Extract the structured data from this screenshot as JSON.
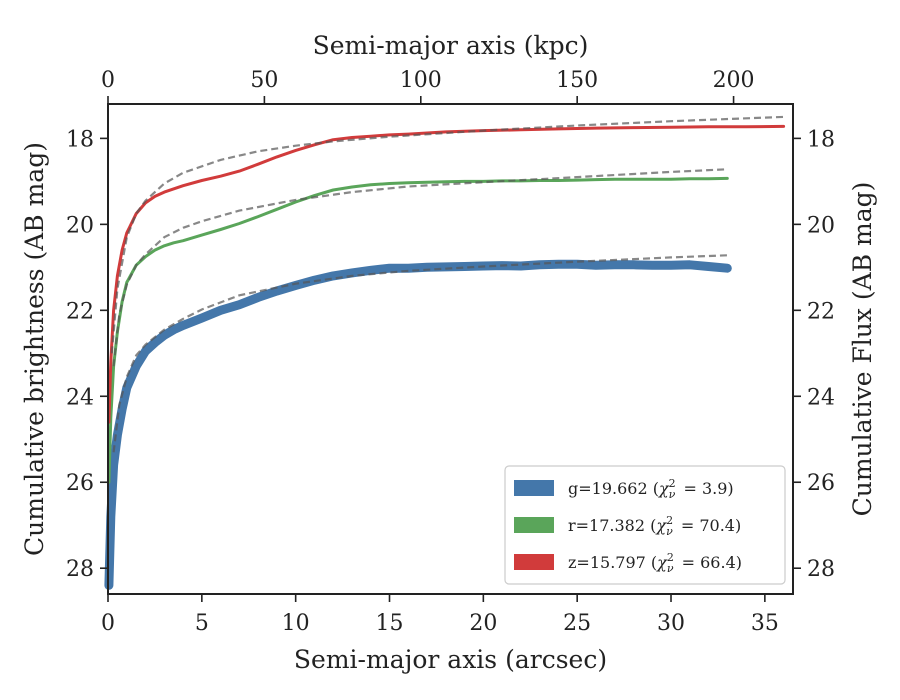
{
  "chart_data": {
    "type": "line",
    "xlabel": "Semi-major axis (arcsec)",
    "ylabel": "Cumulative brightness (AB mag)",
    "top_xlabel": "Semi-major axis (kpc)",
    "right_ylabel": "Cumulative Flux (AB mag)",
    "xlim": [
      0,
      36.5
    ],
    "ylim": [
      28.6,
      17.2
    ],
    "y_inverted": true,
    "top_xlim": [
      0,
      219
    ],
    "xticks": [
      0,
      5,
      10,
      15,
      20,
      25,
      30,
      35
    ],
    "yticks": [
      18,
      20,
      22,
      24,
      26,
      28
    ],
    "top_xticks": [
      0,
      50,
      100,
      150,
      200
    ],
    "grid": false,
    "legend_position": "lower-right",
    "series": [
      {
        "name": "g=19.662",
        "chi2": "3.9",
        "color": "#4477aa",
        "x": [
          0.05,
          0.15,
          0.3,
          0.5,
          0.75,
          1.0,
          1.5,
          2.0,
          2.5,
          3.0,
          3.5,
          4.0,
          5.0,
          6.0,
          7.0,
          8.0,
          9.0,
          10.0,
          11.0,
          12.0,
          13.0,
          14.0,
          15.0,
          16.0,
          17.0,
          18.0,
          19.0,
          20.0,
          21.0,
          22.0,
          23.0,
          24.0,
          25.0,
          26.0,
          27.0,
          28.0,
          29.0,
          30.0,
          31.0,
          32.0,
          33.0
        ],
        "y": [
          28.4,
          26.8,
          25.6,
          24.9,
          24.3,
          23.8,
          23.3,
          22.95,
          22.75,
          22.58,
          22.45,
          22.35,
          22.18,
          22.0,
          21.87,
          21.7,
          21.55,
          21.42,
          21.3,
          21.2,
          21.13,
          21.07,
          21.02,
          21.02,
          21.0,
          20.99,
          20.98,
          20.97,
          20.96,
          20.97,
          20.94,
          20.93,
          20.93,
          20.95,
          20.94,
          20.94,
          20.95,
          20.95,
          20.94,
          20.98,
          21.02
        ]
      },
      {
        "name": "r=17.382",
        "chi2": "70.4",
        "color": "#5aa55a",
        "x": [
          0.05,
          0.15,
          0.3,
          0.5,
          0.75,
          1.0,
          1.5,
          2.0,
          2.5,
          3.0,
          3.5,
          4.0,
          5.0,
          6.0,
          7.0,
          8.0,
          9.0,
          10.0,
          11.0,
          12.0,
          13.0,
          14.0,
          15.0,
          16.0,
          17.0,
          18.0,
          19.0,
          20.0,
          21.0,
          22.0,
          23.0,
          24.0,
          25.0,
          26.0,
          27.0,
          28.0,
          29.0,
          30.0,
          31.0,
          32.0,
          33.0
        ],
        "y": [
          26.0,
          24.5,
          23.3,
          22.5,
          21.8,
          21.35,
          20.95,
          20.75,
          20.6,
          20.5,
          20.43,
          20.38,
          20.25,
          20.12,
          19.98,
          19.82,
          19.65,
          19.48,
          19.33,
          19.2,
          19.13,
          19.08,
          19.05,
          19.03,
          19.02,
          19.01,
          19.0,
          19.0,
          18.99,
          18.99,
          18.98,
          18.98,
          18.97,
          18.96,
          18.95,
          18.95,
          18.95,
          18.95,
          18.94,
          18.94,
          18.93
        ]
      },
      {
        "name": "z=15.797",
        "chi2": "66.4",
        "color": "#d13b3b",
        "x": [
          0.05,
          0.15,
          0.3,
          0.5,
          0.75,
          1.0,
          1.5,
          2.0,
          2.5,
          3.0,
          4.0,
          5.0,
          6.0,
          7.0,
          8.0,
          9.0,
          10.0,
          11.0,
          12.0,
          13.0,
          14.0,
          15.0,
          16.0,
          18.0,
          20.0,
          22.0,
          24.0,
          26.0,
          28.0,
          30.0,
          32.0,
          34.0,
          36.0
        ],
        "y": [
          24.6,
          23.2,
          22.0,
          21.2,
          20.6,
          20.2,
          19.75,
          19.5,
          19.35,
          19.25,
          19.1,
          18.98,
          18.88,
          18.76,
          18.6,
          18.43,
          18.28,
          18.15,
          18.03,
          17.98,
          17.95,
          17.92,
          17.9,
          17.85,
          17.82,
          17.8,
          17.78,
          17.76,
          17.75,
          17.74,
          17.73,
          17.73,
          17.72
        ]
      }
    ],
    "fits": [
      {
        "series": "g=19.662",
        "x": [
          0.3,
          0.6,
          1.0,
          1.5,
          2.0,
          3.0,
          4.0,
          5.0,
          7.0,
          10.0,
          13.0,
          16.0,
          20.0,
          25.0,
          30.0,
          33.0
        ],
        "y": [
          25.3,
          24.2,
          23.55,
          23.05,
          22.8,
          22.45,
          22.2,
          21.98,
          21.65,
          21.38,
          21.2,
          21.08,
          20.98,
          20.87,
          20.77,
          20.72
        ]
      },
      {
        "series": "r=17.382",
        "x": [
          0.3,
          0.6,
          1.0,
          1.5,
          2.0,
          3.0,
          4.0,
          5.0,
          7.0,
          10.0,
          13.0,
          16.0,
          20.0,
          25.0,
          30.0,
          33.0
        ],
        "y": [
          23.3,
          22.1,
          21.4,
          20.95,
          20.7,
          20.3,
          20.08,
          19.93,
          19.68,
          19.43,
          19.25,
          19.12,
          19.02,
          18.9,
          18.78,
          18.72
        ]
      },
      {
        "series": "z=15.797",
        "x": [
          0.2,
          0.5,
          1.0,
          1.5,
          2.0,
          3.0,
          4.0,
          6.0,
          8.0,
          10.0,
          12.0,
          15.0,
          20.0,
          25.0,
          30.0,
          36.0
        ],
        "y": [
          23.0,
          21.5,
          20.3,
          19.75,
          19.45,
          19.05,
          18.8,
          18.5,
          18.3,
          18.17,
          18.07,
          17.96,
          17.82,
          17.7,
          17.6,
          17.5
        ]
      }
    ]
  }
}
